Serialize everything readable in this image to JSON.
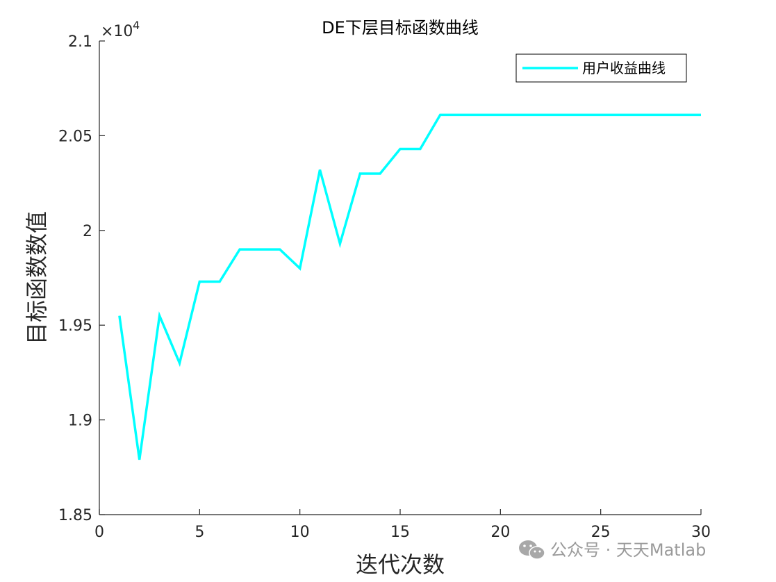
{
  "chart_data": {
    "type": "line",
    "title": "DE下层目标函数曲线",
    "xlabel": "迭代次数",
    "ylabel": "目标函数数值",
    "y_exponent_label": "×10",
    "y_exponent_power": "4",
    "xlim": [
      0,
      30
    ],
    "ylim": [
      1.85,
      2.1
    ],
    "xticks": [
      0,
      5,
      10,
      15,
      20,
      25,
      30
    ],
    "xtick_labels": [
      "0",
      "5",
      "10",
      "15",
      "20",
      "25",
      "30"
    ],
    "yticks": [
      1.85,
      1.9,
      1.95,
      2.0,
      2.05,
      2.1
    ],
    "ytick_labels": [
      "1.85",
      "1.9",
      "1.95",
      "2",
      "2.05",
      "2.1"
    ],
    "grid": false,
    "legend_position": "top-right",
    "series": [
      {
        "name": "用户收益曲线",
        "color": "#00FFFF",
        "x": [
          1,
          2,
          3,
          4,
          5,
          6,
          7,
          8,
          9,
          10,
          11,
          12,
          13,
          14,
          15,
          16,
          17,
          18,
          19,
          20,
          21,
          22,
          23,
          24,
          25,
          26,
          27,
          28,
          29,
          30
        ],
        "y": [
          1.955,
          1.879,
          1.955,
          1.93,
          1.973,
          1.973,
          1.99,
          1.99,
          1.99,
          1.98,
          2.032,
          1.993,
          2.03,
          2.03,
          2.043,
          2.043,
          2.061,
          2.061,
          2.061,
          2.061,
          2.061,
          2.061,
          2.061,
          2.061,
          2.061,
          2.061,
          2.061,
          2.061,
          2.061,
          2.061
        ]
      }
    ]
  },
  "watermark": {
    "text": "公众号 · 天天Matlab",
    "icon": "wechat-icon"
  }
}
